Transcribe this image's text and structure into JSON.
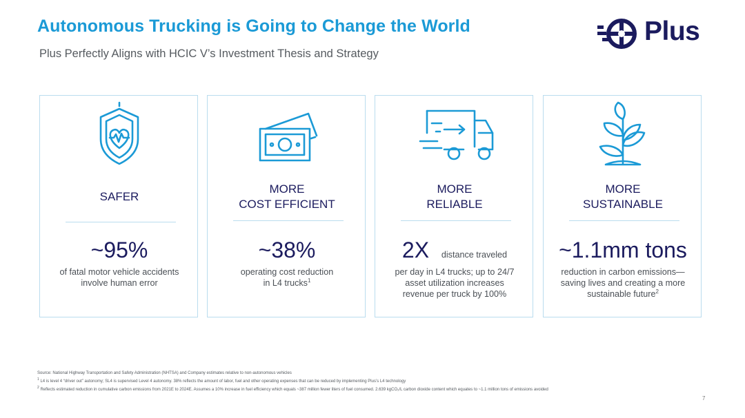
{
  "header": {
    "title": "Autonomous Trucking is Going to Change the World",
    "subtitle": "Plus Perfectly Aligns with HCIC V’s Investment Thesis and Strategy"
  },
  "logo": {
    "text": "Plus"
  },
  "colors": {
    "accent": "#1b9ad6",
    "navy": "#1b1b5e",
    "border": "#b9dcee"
  },
  "cards": [
    {
      "icon": "shield-heart-icon",
      "heading": "SAFER",
      "stat": "~95%",
      "desc_lines": [
        "of fatal motor vehicle accidents",
        "involve human error"
      ]
    },
    {
      "icon": "money-bills-icon",
      "heading_lines": [
        "MORE",
        "COST EFFICIENT"
      ],
      "stat": "~38%",
      "desc_lines": [
        "operating cost reduction",
        "in L4 trucks"
      ],
      "desc_sup": "1"
    },
    {
      "icon": "moving-truck-icon",
      "heading_lines": [
        "MORE",
        "RELIABLE"
      ],
      "stat": "2X",
      "stat_suffix": "distance traveled",
      "desc_lines": [
        "per day in L4 trucks; up to 24/7",
        "asset utilization increases",
        "revenue per truck by 100%"
      ]
    },
    {
      "icon": "plant-sprout-icon",
      "heading_lines": [
        "MORE",
        "SUSTAINABLE"
      ],
      "stat": "~1.1mm tons",
      "desc_lines": [
        "reduction in carbon emissions—",
        "saving lives and creating a more",
        "sustainable future"
      ],
      "desc_sup": "2"
    }
  ],
  "footnotes": {
    "source": "Source: National Highway Transportation and Safety Administration (NHTSA) and Company estimates relative to non-autonomous vehicles",
    "note1_marker": "1",
    "note1": "L4 is level 4 “driver out” autonomy; SL4 is supervised Level 4 autonomy. 38% reflects the amount of labor, fuel and other operating expenses that can be reduced by implementing Plus’s L4 technology",
    "note2_marker": "2",
    "note2": "Reflects estimated reduction in cumulative carbon emissions from 2021E to 2024E. Assumes a 10% increase in fuel efficiency which equals ~387 million fewer liters of fuel consumed. 2.639 kgCO₂/L carbon dioxide content which equates to ~1.1 million tons of emissions avoided"
  },
  "page_number": "7"
}
